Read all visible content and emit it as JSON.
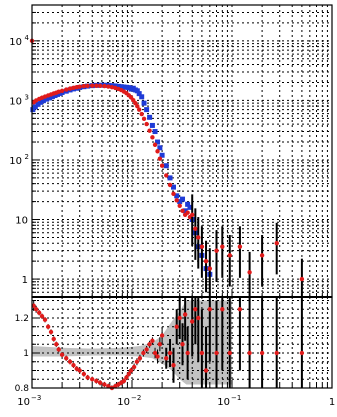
{
  "chart_data": [
    {
      "type": "scatter",
      "x_scale": "log",
      "y_scale": "log",
      "xlim": [
        0.001,
        1
      ],
      "ylim": [
        0.5,
        40000
      ],
      "grid": true,
      "ytick_labels": [
        {
          "value": 10000,
          "base": "10",
          "exp": "4"
        },
        {
          "value": 1000,
          "base": "10",
          "exp": "3"
        },
        {
          "value": 100,
          "base": "10",
          "exp": "2"
        },
        {
          "value": 10,
          "base": "10",
          "exp": ""
        },
        {
          "value": 1,
          "base": "1",
          "exp": ""
        }
      ],
      "series": [
        {
          "color": "#1f3bd6",
          "marker": "square",
          "points": [
            [
              0.00102,
              700
            ],
            [
              0.00108,
              780
            ],
            [
              0.00115,
              860
            ],
            [
              0.00122,
              930
            ],
            [
              0.0013,
              990
            ],
            [
              0.0014,
              1050
            ],
            [
              0.0015,
              1100
            ],
            [
              0.0016,
              1160
            ],
            [
              0.0017,
              1210
            ],
            [
              0.0018,
              1260
            ],
            [
              0.0019,
              1310
            ],
            [
              0.002,
              1360
            ],
            [
              0.0022,
              1430
            ],
            [
              0.0024,
              1500
            ],
            [
              0.0026,
              1560
            ],
            [
              0.0028,
              1600
            ],
            [
              0.003,
              1650
            ],
            [
              0.0033,
              1700
            ],
            [
              0.0036,
              1740
            ],
            [
              0.004,
              1770
            ],
            [
              0.0044,
              1790
            ],
            [
              0.0048,
              1800
            ],
            [
              0.0053,
              1800
            ],
            [
              0.0058,
              1790
            ],
            [
              0.0063,
              1770
            ],
            [
              0.0068,
              1750
            ],
            [
              0.0073,
              1720
            ],
            [
              0.0078,
              1700
            ],
            [
              0.0083,
              1680
            ],
            [
              0.0088,
              1660
            ],
            [
              0.0093,
              1640
            ],
            [
              0.0098,
              1550
            ],
            [
              0.0103,
              1600
            ],
            [
              0.0108,
              1500
            ],
            [
              0.0113,
              1450
            ],
            [
              0.0118,
              1300
            ],
            [
              0.0125,
              1150
            ],
            [
              0.0132,
              900
            ],
            [
              0.014,
              700
            ],
            [
              0.015,
              520
            ],
            [
              0.016,
              380
            ],
            [
              0.017,
              300
            ],
            [
              0.018,
              200
            ],
            [
              0.019,
              160
            ],
            [
              0.02,
              120
            ],
            [
              0.022,
              80
            ],
            [
              0.024,
              50
            ],
            [
              0.026,
              35
            ],
            [
              0.028,
              25
            ],
            [
              0.03,
              20
            ],
            [
              0.032,
              22
            ],
            [
              0.034,
              14
            ],
            [
              0.036,
              18
            ],
            [
              0.038,
              16
            ],
            [
              0.04,
              10
            ],
            [
              0.043,
              6
            ],
            [
              0.046,
              3.5
            ],
            [
              0.05,
              2.5
            ],
            [
              0.055,
              1.5
            ],
            [
              0.06,
              1.2
            ]
          ]
        },
        {
          "color": "#e01b1b",
          "marker": "circle",
          "points": [
            [
              0.001,
              10000
            ],
            [
              0.00104,
              930
            ],
            [
              0.0011,
              1000
            ],
            [
              0.00118,
              1060
            ],
            [
              0.00126,
              1110
            ],
            [
              0.00135,
              1160
            ],
            [
              0.00145,
              1210
            ],
            [
              0.00155,
              1260
            ],
            [
              0.00165,
              1310
            ],
            [
              0.00175,
              1350
            ],
            [
              0.00185,
              1400
            ],
            [
              0.002,
              1450
            ],
            [
              0.0022,
              1520
            ],
            [
              0.0024,
              1580
            ],
            [
              0.0026,
              1630
            ],
            [
              0.0028,
              1670
            ],
            [
              0.003,
              1700
            ],
            [
              0.0033,
              1740
            ],
            [
              0.0036,
              1760
            ],
            [
              0.004,
              1770
            ],
            [
              0.0044,
              1770
            ],
            [
              0.0048,
              1760
            ],
            [
              0.0053,
              1740
            ],
            [
              0.0058,
              1710
            ],
            [
              0.0063,
              1670
            ],
            [
              0.0068,
              1620
            ],
            [
              0.0073,
              1560
            ],
            [
              0.0078,
              1490
            ],
            [
              0.0083,
              1410
            ],
            [
              0.0088,
              1320
            ],
            [
              0.0093,
              1220
            ],
            [
              0.0098,
              1120
            ],
            [
              0.0103,
              1010
            ],
            [
              0.0108,
              900
            ],
            [
              0.0113,
              800
            ],
            [
              0.0118,
              700
            ],
            [
              0.0125,
              590
            ],
            [
              0.0132,
              490
            ],
            [
              0.014,
              400
            ],
            [
              0.015,
              310
            ],
            [
              0.016,
              240
            ],
            [
              0.017,
              180
            ],
            [
              0.018,
              140
            ],
            [
              0.019,
              105
            ],
            [
              0.02,
              80
            ],
            [
              0.022,
              55
            ],
            [
              0.024,
              38
            ],
            [
              0.026,
              27
            ],
            [
              0.028,
              21
            ],
            [
              0.03,
              17
            ],
            [
              0.032,
              14
            ],
            [
              0.034,
              12
            ],
            [
              0.036,
              13
            ],
            [
              0.038,
              11
            ],
            [
              0.04,
              12
            ],
            [
              0.043,
              7
            ],
            [
              0.046,
              5
            ],
            [
              0.05,
              3.5
            ],
            [
              0.055,
              2
            ],
            [
              0.06,
              1.5
            ],
            [
              0.07,
              3
            ],
            [
              0.08,
              3.5
            ],
            [
              0.095,
              2.5
            ],
            [
              0.12,
              3.5
            ],
            [
              0.15,
              1.3
            ],
            [
              0.2,
              2.5
            ],
            [
              0.28,
              4
            ],
            [
              0.5,
              1
            ]
          ]
        }
      ]
    },
    {
      "type": "scatter",
      "x_scale": "log",
      "xlim": [
        0.001,
        1
      ],
      "ylim": [
        0.8,
        1.32
      ],
      "grid": true,
      "ytick_labels": [
        "0.8",
        "1",
        "1.2"
      ],
      "xtick_labels": [
        {
          "value": 0.001,
          "base": "10",
          "exp": "−3"
        },
        {
          "value": 0.01,
          "base": "10",
          "exp": "−2"
        },
        {
          "value": 0.1,
          "base": "10",
          "exp": "−1"
        },
        {
          "value": 1,
          "base": "1",
          "exp": ""
        }
      ],
      "band": {
        "color": "#bbbbbb",
        "points": [
          [
            0.001,
            0.98,
            1.04
          ],
          [
            0.002,
            0.98,
            1.03
          ],
          [
            0.004,
            0.985,
            1.025
          ],
          [
            0.008,
            0.985,
            1.03
          ],
          [
            0.012,
            0.98,
            1.04
          ],
          [
            0.016,
            0.97,
            1.06
          ],
          [
            0.02,
            0.94,
            1.1
          ],
          [
            0.025,
            0.9,
            1.18
          ],
          [
            0.03,
            0.85,
            1.24
          ],
          [
            0.035,
            0.82,
            1.3
          ],
          [
            0.1,
            0.82,
            1.3
          ]
        ]
      },
      "ratio": {
        "color": "#e01b1b",
        "points": [
          [
            0.00104,
            1.27,
            0.03
          ],
          [
            0.0011,
            1.25,
            0.02
          ],
          [
            0.00118,
            1.23,
            0.015
          ],
          [
            0.00126,
            1.21,
            0.015
          ],
          [
            0.00135,
            1.19,
            0.015
          ],
          [
            0.00145,
            1.15,
            0.015
          ],
          [
            0.00155,
            1.12,
            0.015
          ],
          [
            0.00165,
            1.08,
            0.015
          ],
          [
            0.00175,
            1.05,
            0.015
          ],
          [
            0.00185,
            1.02,
            0.015
          ],
          [
            0.002,
            0.99,
            0.015
          ],
          [
            0.0022,
            0.97,
            0.015
          ],
          [
            0.0024,
            0.95,
            0.015
          ],
          [
            0.0026,
            0.93,
            0.015
          ],
          [
            0.0028,
            0.91,
            0.015
          ],
          [
            0.003,
            0.9,
            0.015
          ],
          [
            0.0033,
            0.88,
            0.015
          ],
          [
            0.0036,
            0.86,
            0.015
          ],
          [
            0.004,
            0.85,
            0.015
          ],
          [
            0.0044,
            0.84,
            0.015
          ],
          [
            0.0048,
            0.83,
            0.015
          ],
          [
            0.0053,
            0.82,
            0.015
          ],
          [
            0.0058,
            0.81,
            0.015
          ],
          [
            0.0063,
            0.8,
            0.015
          ],
          [
            0.0068,
            0.81,
            0.015
          ],
          [
            0.0073,
            0.82,
            0.015
          ],
          [
            0.0078,
            0.83,
            0.015
          ],
          [
            0.0083,
            0.84,
            0.015
          ],
          [
            0.0088,
            0.86,
            0.015
          ],
          [
            0.0093,
            0.88,
            0.015
          ],
          [
            0.0098,
            0.9,
            0.015
          ],
          [
            0.0105,
            0.92,
            0.02
          ],
          [
            0.0112,
            0.95,
            0.02
          ],
          [
            0.012,
            0.97,
            0.02
          ],
          [
            0.013,
            1.0,
            0.02
          ],
          [
            0.014,
            1.02,
            0.02
          ],
          [
            0.015,
            1.05,
            0.02
          ],
          [
            0.016,
            1.07,
            0.02
          ],
          [
            0.017,
            1.0,
            0.03
          ],
          [
            0.018,
            0.98,
            0.04
          ],
          [
            0.019,
            1.05,
            0.04
          ],
          [
            0.02,
            1.1,
            0.05
          ],
          [
            0.022,
            0.97,
            0.06
          ],
          [
            0.024,
            1.0,
            0.08
          ],
          [
            0.026,
            0.93,
            0.1
          ],
          [
            0.028,
            1.15,
            0.1
          ],
          [
            0.03,
            1.2,
            0.12
          ],
          [
            0.032,
            1.05,
            0.12
          ],
          [
            0.034,
            1.22,
            0.15
          ],
          [
            0.036,
            1.0,
            0.15
          ],
          [
            0.04,
            1.18,
            0.2
          ],
          [
            0.043,
            1.25,
            0.2
          ],
          [
            0.046,
            1.2,
            0.25
          ],
          [
            0.05,
            1.0,
            0.25
          ],
          [
            0.055,
            0.9,
            0.25
          ],
          [
            0.06,
            1.25,
            0.3
          ],
          [
            0.07,
            1.0,
            0.3
          ],
          [
            0.08,
            1.25,
            0.35
          ],
          [
            0.095,
            1.0,
            0.35
          ],
          [
            0.12,
            1.25,
            0.35
          ],
          [
            0.15,
            1.0,
            0.35
          ],
          [
            0.2,
            1.0,
            0.35
          ],
          [
            0.28,
            1.0,
            0.35
          ],
          [
            0.5,
            1.0,
            0.35
          ]
        ]
      }
    }
  ]
}
